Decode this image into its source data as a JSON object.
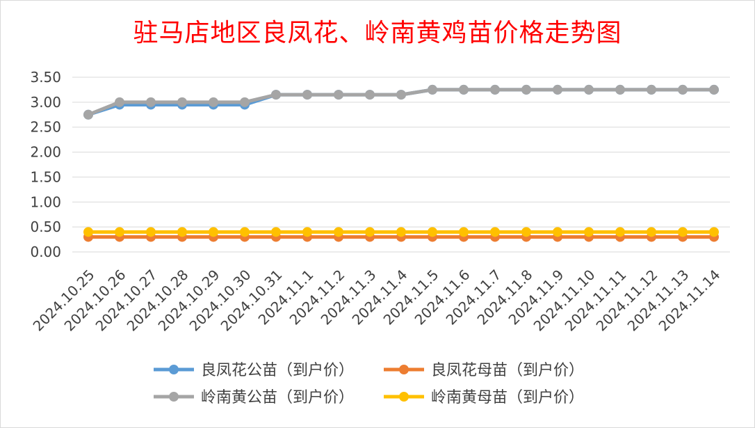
{
  "chart_data": {
    "type": "line",
    "title": "驻马店地区良凤花、岭南黄鸡苗价格走势图",
    "xlabel": "",
    "ylabel": "",
    "ylim": [
      0,
      3.5
    ],
    "yticks": [
      "0.00",
      "0.50",
      "1.00",
      "1.50",
      "2.00",
      "2.50",
      "3.00",
      "3.50"
    ],
    "grid": true,
    "legend_position": "bottom",
    "x": [
      "2024.10.25",
      "2024.10.26",
      "2024.10.27",
      "2024.10.28",
      "2024.10.29",
      "2024.10.30",
      "2024.10.31",
      "2024.11.1",
      "2024.11.2",
      "2024.11.3",
      "2024.11.4",
      "2024.11.5",
      "2024.11.6",
      "2024.11.7",
      "2024.11.8",
      "2024.11.9",
      "2024.11.10",
      "2024.11.11",
      "2024.11.12",
      "2024.11.13",
      "2024.11.14"
    ],
    "series": [
      {
        "name": "良凤花公苗（到户价）",
        "color": "#5b9bd5",
        "values": [
          2.75,
          2.95,
          2.95,
          2.95,
          2.95,
          2.95,
          3.15,
          3.15,
          3.15,
          3.15,
          3.15,
          3.25,
          3.25,
          3.25,
          3.25,
          3.25,
          3.25,
          3.25,
          3.25,
          3.25,
          3.25
        ]
      },
      {
        "name": "良凤花母苗（到户价）",
        "color": "#ed7d31",
        "values": [
          0.3,
          0.3,
          0.3,
          0.3,
          0.3,
          0.3,
          0.3,
          0.3,
          0.3,
          0.3,
          0.3,
          0.3,
          0.3,
          0.3,
          0.3,
          0.3,
          0.3,
          0.3,
          0.3,
          0.3,
          0.3
        ]
      },
      {
        "name": "岭南黄公苗（到户价）",
        "color": "#a5a5a5",
        "values": [
          2.75,
          3.0,
          3.0,
          3.0,
          3.0,
          3.0,
          3.15,
          3.15,
          3.15,
          3.15,
          3.15,
          3.25,
          3.25,
          3.25,
          3.25,
          3.25,
          3.25,
          3.25,
          3.25,
          3.25,
          3.25
        ]
      },
      {
        "name": "岭南黄母苗（到户价）",
        "color": "#ffc000",
        "values": [
          0.4,
          0.4,
          0.4,
          0.4,
          0.4,
          0.4,
          0.4,
          0.4,
          0.4,
          0.4,
          0.4,
          0.4,
          0.4,
          0.4,
          0.4,
          0.4,
          0.4,
          0.4,
          0.4,
          0.4,
          0.4
        ]
      }
    ],
    "draw_order": [
      0,
      2,
      1,
      3
    ]
  }
}
